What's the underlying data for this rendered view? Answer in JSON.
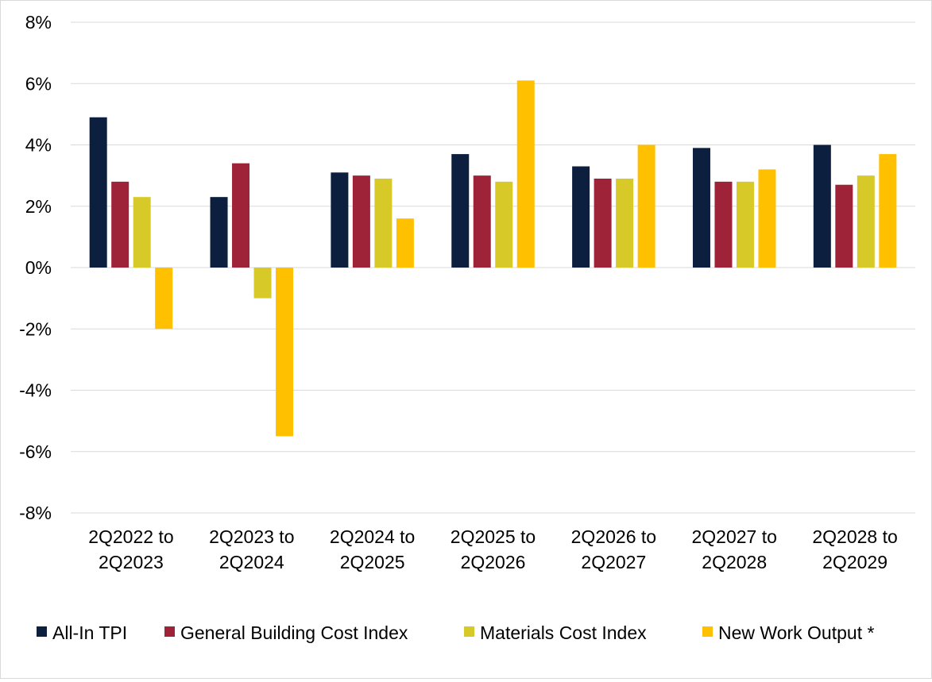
{
  "chart_data": {
    "type": "bar",
    "title": "",
    "xlabel": "",
    "ylabel": "",
    "ylim": [
      -8,
      8
    ],
    "yticks": [
      8,
      6,
      4,
      2,
      0,
      -2,
      -4,
      -6,
      -8
    ],
    "ytick_labels": [
      "8%",
      "6%",
      "4%",
      "2%",
      "0%",
      "-2%",
      "-4%",
      "-6%",
      "-8%"
    ],
    "grid": true,
    "legend_position": "bottom",
    "categories": [
      [
        "2Q2022 to",
        "2Q2023"
      ],
      [
        "2Q2023 to",
        "2Q2024"
      ],
      [
        "2Q2024 to",
        "2Q2025"
      ],
      [
        "2Q2025 to",
        "2Q2026"
      ],
      [
        "2Q2026 to",
        "2Q2027"
      ],
      [
        "2Q2027 to",
        "2Q2028"
      ],
      [
        "2Q2028 to",
        "2Q2029"
      ]
    ],
    "series": [
      {
        "name": "All-In TPI",
        "color": "#0c1f3f",
        "values": [
          4.9,
          2.3,
          3.1,
          3.7,
          3.3,
          3.9,
          4.0
        ]
      },
      {
        "name": "General Building Cost Index",
        "color": "#9e2238",
        "values": [
          2.8,
          3.4,
          3.0,
          3.0,
          2.9,
          2.8,
          2.7
        ]
      },
      {
        "name": "Materials Cost Index",
        "color": "#d7c928",
        "values": [
          2.3,
          -1.0,
          2.9,
          2.8,
          2.9,
          2.8,
          3.0
        ]
      },
      {
        "name": "New Work Output *",
        "color": "#ffc000",
        "values": [
          -2.0,
          -5.5,
          1.6,
          6.1,
          4.0,
          3.2,
          3.7
        ]
      }
    ]
  }
}
